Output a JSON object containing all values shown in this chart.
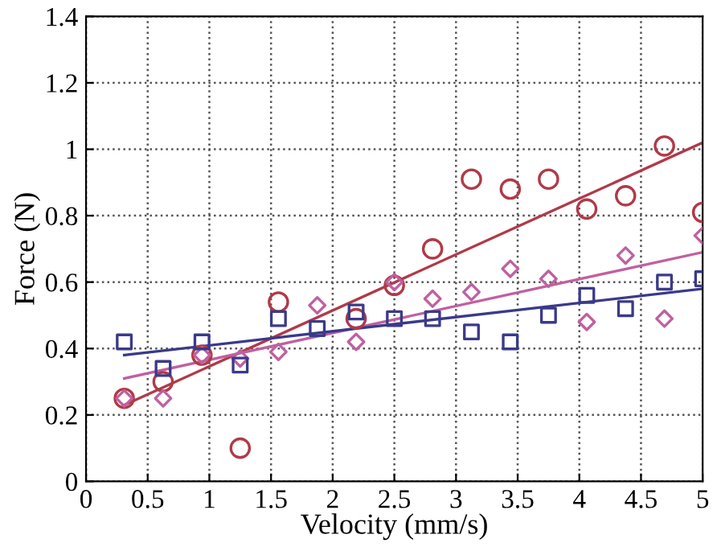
{
  "chart_data": {
    "type": "scatter",
    "xlabel": "Velocity (mm/s)",
    "ylabel": "Force (N)",
    "xlim": [
      0,
      5
    ],
    "ylim": [
      0,
      1.4
    ],
    "xticks": [
      0,
      0.5,
      1,
      1.5,
      2,
      2.5,
      3,
      3.5,
      4,
      4.5,
      5
    ],
    "yticks": [
      0,
      0.2,
      0.4,
      0.6,
      0.8,
      1,
      1.2,
      1.4
    ],
    "grid": true,
    "series": [
      {
        "marker": "circle",
        "color": "#b03a48",
        "x": [
          0.31,
          0.625,
          0.94,
          1.25,
          1.56,
          2.19,
          2.5,
          2.81,
          3.125,
          3.44,
          3.75,
          4.06,
          4.375,
          4.69,
          5.0
        ],
        "values": [
          0.25,
          0.3,
          0.38,
          0.1,
          0.54,
          0.49,
          0.59,
          0.7,
          0.91,
          0.88,
          0.91,
          0.82,
          0.86,
          1.01,
          0.81
        ]
      },
      {
        "marker": "diamond",
        "color": "#c060a0",
        "x": [
          0.31,
          0.625,
          0.94,
          1.25,
          1.56,
          1.875,
          2.19,
          2.5,
          2.81,
          3.125,
          3.44,
          3.75,
          4.06,
          4.375,
          4.69,
          5.0
        ],
        "values": [
          0.25,
          0.25,
          0.38,
          0.37,
          0.39,
          0.53,
          0.42,
          0.6,
          0.55,
          0.57,
          0.64,
          0.61,
          0.48,
          0.68,
          0.49,
          0.74
        ]
      },
      {
        "marker": "square",
        "color": "#3a3a8a",
        "x": [
          0.31,
          0.625,
          0.94,
          1.25,
          1.56,
          1.875,
          2.19,
          2.5,
          2.81,
          3.125,
          3.44,
          3.75,
          4.06,
          4.375,
          4.69,
          5.0
        ],
        "values": [
          0.42,
          0.34,
          0.42,
          0.35,
          0.49,
          0.46,
          0.51,
          0.49,
          0.49,
          0.45,
          0.42,
          0.5,
          0.56,
          0.52,
          0.6,
          0.61
        ]
      },
      {
        "type": "line",
        "color": "#b03a48",
        "x": [
          0.31,
          5.0
        ],
        "values": [
          0.23,
          1.02
        ]
      },
      {
        "type": "line",
        "color": "#c060a0",
        "x": [
          0.31,
          5.0
        ],
        "values": [
          0.31,
          0.69
        ]
      },
      {
        "type": "line",
        "color": "#3a3a8a",
        "x": [
          0.31,
          5.0
        ],
        "values": [
          0.38,
          0.58
        ]
      }
    ]
  }
}
